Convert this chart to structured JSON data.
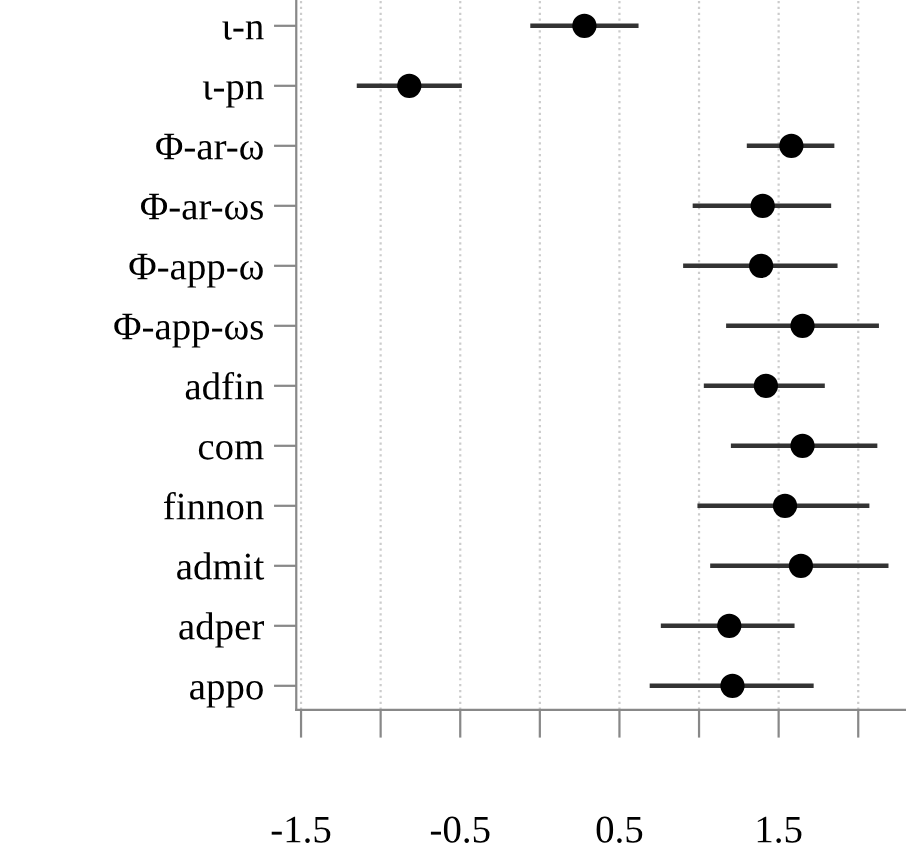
{
  "chart_data": {
    "type": "scatter",
    "categories": [
      "ι-n",
      "ι-pn",
      "Φ-ar-ω",
      "Φ-ar-ωs",
      "Φ-app-ω",
      "Φ-app-ωs",
      "adfin",
      "com",
      "finnon",
      "admit",
      "adper",
      "appo"
    ],
    "orientation": "horizontal",
    "values": [
      0.28,
      -0.82,
      1.58,
      1.4,
      1.39,
      1.65,
      1.42,
      1.65,
      1.54,
      1.64,
      1.19,
      1.21
    ],
    "errors": [
      [
        -0.06,
        0.62
      ],
      [
        -1.15,
        -0.49
      ],
      [
        1.3,
        1.85
      ],
      [
        0.96,
        1.83
      ],
      [
        0.9,
        1.87
      ],
      [
        1.17,
        2.13
      ],
      [
        1.03,
        1.79
      ],
      [
        1.2,
        2.12
      ],
      [
        0.99,
        2.07
      ],
      [
        1.07,
        2.19
      ],
      [
        0.76,
        1.6
      ],
      [
        0.69,
        1.72
      ]
    ],
    "color": "#000000",
    "marker": "circle",
    "grid": "x",
    "xlim": [
      -1.53,
      2.3
    ],
    "xticks": [
      -1.5,
      {
        "value": -1.0,
        "label": null
      },
      -0.5,
      {
        "value": 0.0,
        "label": null
      },
      0.5,
      {
        "value": 1.0,
        "label": null
      },
      1.5,
      {
        "value": 2.0,
        "label": null
      }
    ]
  }
}
